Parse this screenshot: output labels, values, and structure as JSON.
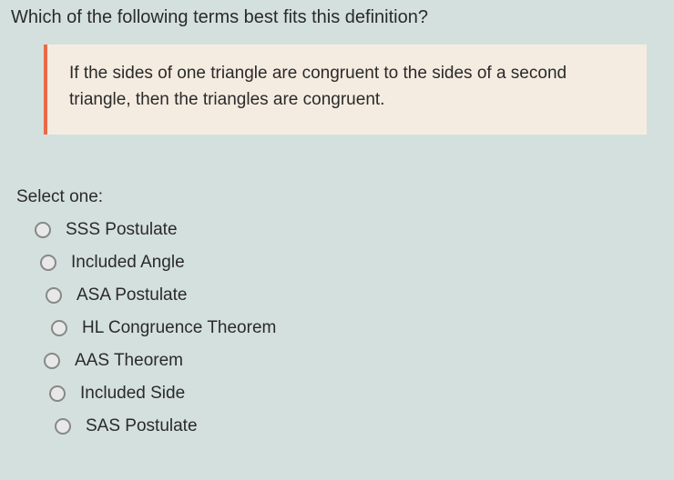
{
  "question": {
    "prompt": "Which of the following terms best fits this definition?",
    "definition": "If the sides of one triangle are congruent to the sides of a second triangle, then the triangles are congruent.",
    "select_label": "Select one:"
  },
  "options": [
    {
      "label": "SSS Postulate"
    },
    {
      "label": "Included Angle"
    },
    {
      "label": "ASA Postulate"
    },
    {
      "label": "HL Congruence Theorem"
    },
    {
      "label": "AAS Theorem"
    },
    {
      "label": "Included Side"
    },
    {
      "label": "SAS Postulate"
    }
  ],
  "colors": {
    "background": "#d4e0dd",
    "definition_bg": "#f5ece1",
    "definition_border": "#e86a4a",
    "text": "#2a2a2a",
    "radio_border": "#888"
  }
}
